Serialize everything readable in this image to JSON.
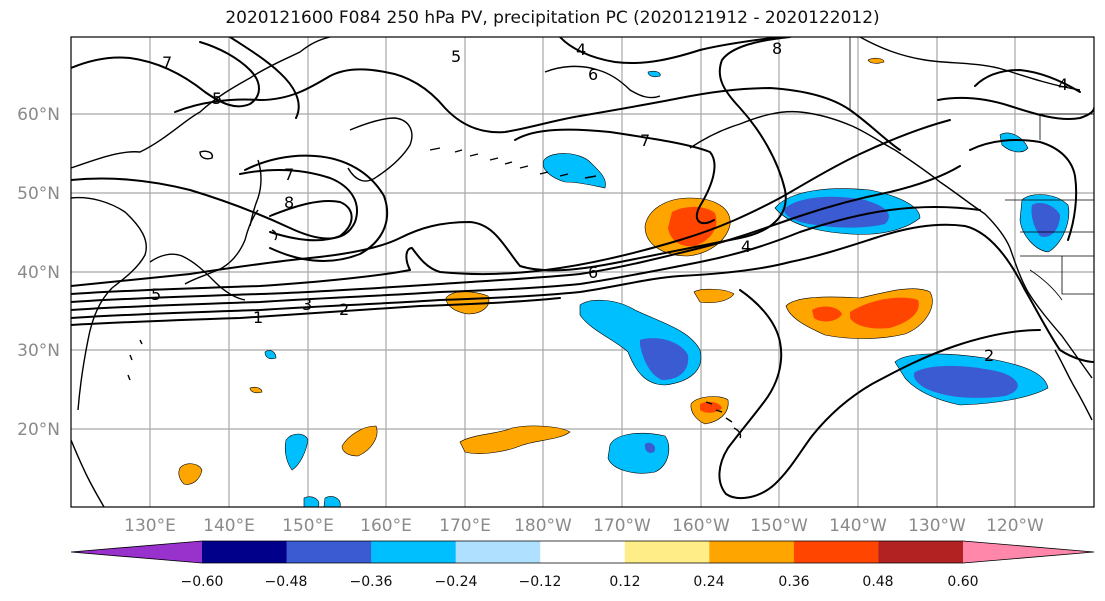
{
  "title": "2020121600 F084 250 hPa PV, precipitation PC (2020121912 - 2020122012)",
  "lat_labels": [
    "60°N",
    "50°N",
    "40°N",
    "30°N",
    "20°N"
  ],
  "lon_labels": [
    "130°E",
    "140°E",
    "150°E",
    "160°E",
    "170°E",
    "180°W",
    "170°W",
    "160°W",
    "150°W",
    "140°W",
    "130°W",
    "120°W"
  ],
  "colorbar": {
    "colors": [
      "#9932cc",
      "#00008b",
      "#3a5bd1",
      "#00bfff",
      "#b0e0ff",
      "#ffffff",
      "#ffee88",
      "#ffa500",
      "#ff4500",
      "#b22222",
      "#ff88aa"
    ],
    "ticks": [
      "−0.60",
      "−0.48",
      "−0.36",
      "−0.24",
      "−0.12",
      "0.12",
      "0.24",
      "0.36",
      "0.48",
      "0.60"
    ]
  },
  "contour_labels": [
    "5",
    "4",
    "8",
    "6",
    "7",
    "4",
    "5",
    "7",
    "8",
    "7",
    "6",
    "4",
    "5",
    "3",
    "2",
    "1",
    "2"
  ]
}
